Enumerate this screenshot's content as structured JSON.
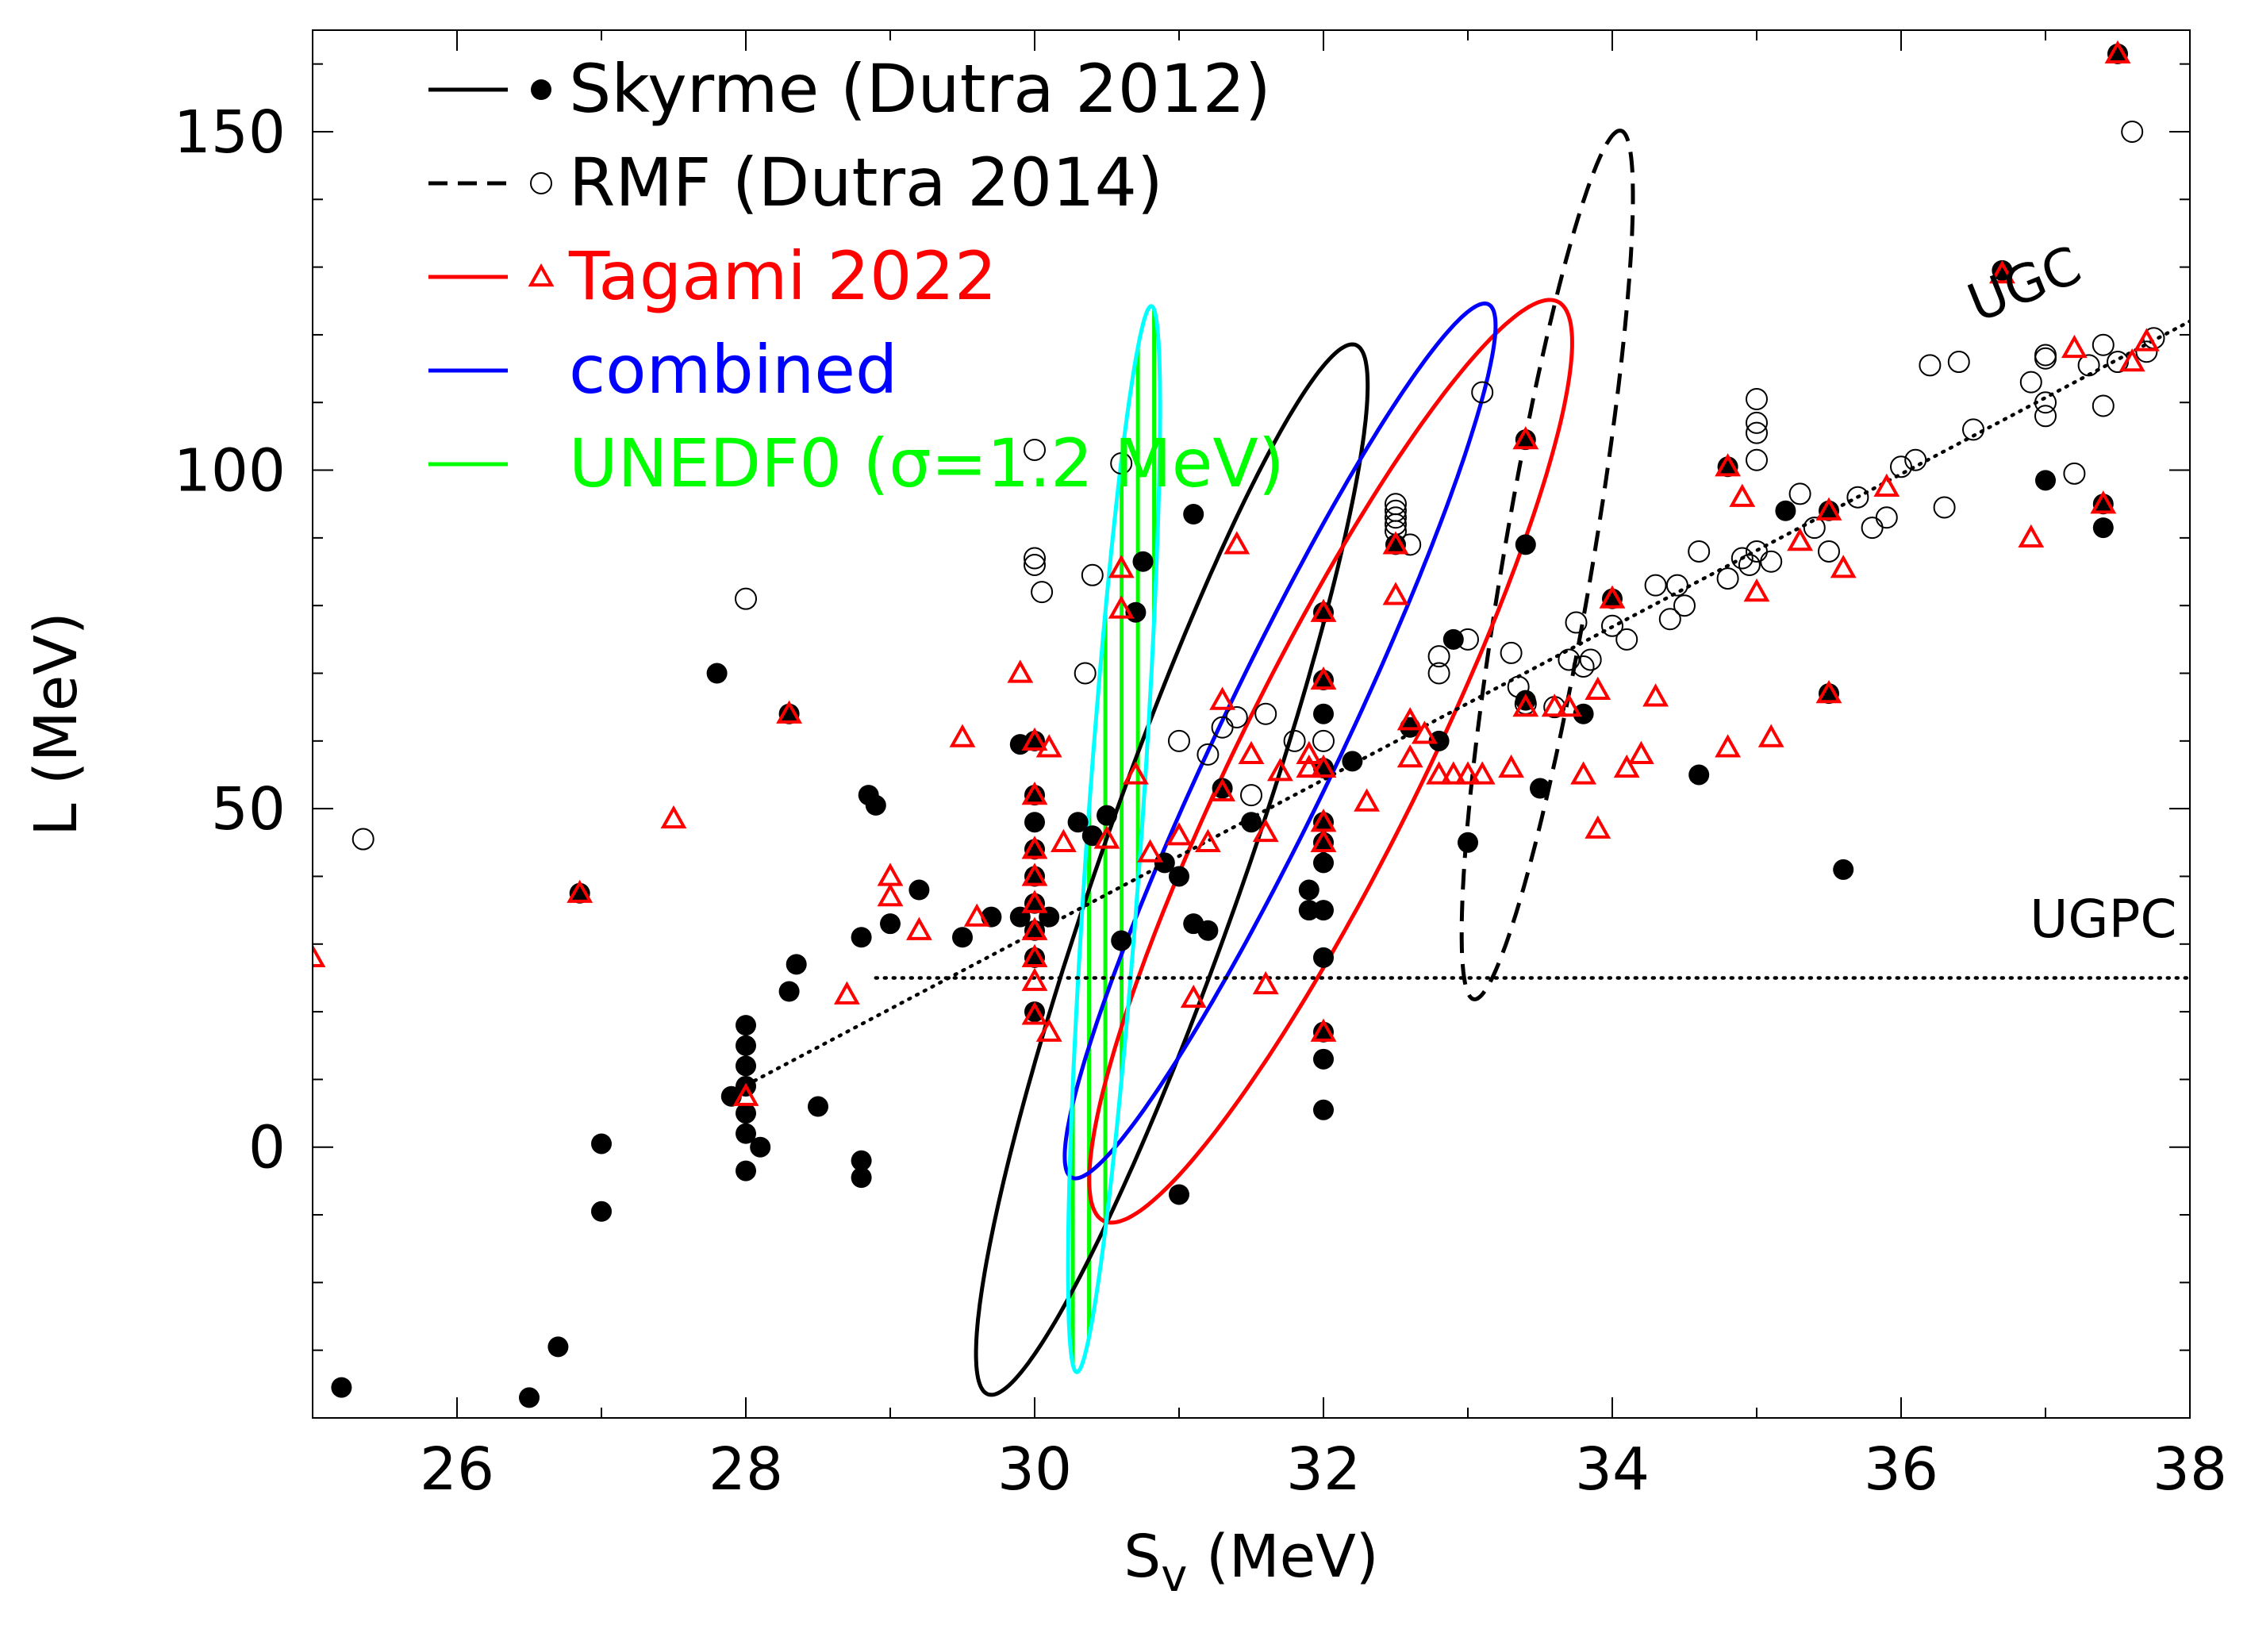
{
  "chart_data": {
    "type": "scatter",
    "title": "",
    "xlabel": "S",
    "xlabel_sub": "v",
    "xlabel_unit": " (MeV)",
    "ylabel": "L (MeV)",
    "xlim": [
      25,
      38
    ],
    "ylim": [
      -40,
      165
    ],
    "xticks": [
      26,
      28,
      30,
      32,
      34,
      36,
      38
    ],
    "yticks": [
      0,
      50,
      100,
      150
    ],
    "legend": {
      "position": "top-left",
      "entries": [
        {
          "label": "Skyrme (Dutra 2012)",
          "color": "#000000",
          "line": "solid",
          "marker": "filled-circle"
        },
        {
          "label": "RMF (Dutra 2014)",
          "color": "#000000",
          "line": "dashed",
          "marker": "open-circle"
        },
        {
          "label": "Tagami 2022",
          "color": "#ff0000",
          "line": "solid",
          "marker": "open-triangle"
        },
        {
          "label": "combined",
          "color": "#0000ff",
          "line": "solid",
          "marker": ""
        },
        {
          "label": "UNEDF0 (σ=1.2 MeV)",
          "color": "#00ff00",
          "line": "solid",
          "marker": ""
        }
      ]
    },
    "annotations": [
      {
        "text": "UGC",
        "x": 36.9,
        "y": 125,
        "rotation": -22
      },
      {
        "text": "UGPC",
        "x": 37.4,
        "y": 31
      }
    ],
    "reference_lines": [
      {
        "name": "UGC",
        "style": "dotted",
        "color": "#000000",
        "points": [
          [
            27.9,
            8
          ],
          [
            38,
            122
          ]
        ]
      },
      {
        "name": "UGPC",
        "style": "dotted",
        "color": "#000000",
        "points": [
          [
            28.9,
            25
          ],
          [
            38,
            25
          ]
        ]
      }
    ],
    "ellipses": [
      {
        "name": "Skyrme (Dutra 2012)",
        "color": "#000000",
        "dash": "solid",
        "cx": 30.95,
        "cy": 41,
        "rx": 3.85,
        "ry": 10.6,
        "angle_deg": 70.7
      },
      {
        "name": "RMF (Dutra 2014)",
        "color": "#000000",
        "dash": "dashed",
        "cx": 33.55,
        "cy": 86,
        "rx": 3.05,
        "ry": 6.6,
        "angle_deg": 80.4
      },
      {
        "name": "Tagami 2022",
        "color": "#ff0000",
        "dash": "solid",
        "cx": 32.05,
        "cy": 57,
        "rx": 3.55,
        "ry": 13.5,
        "angle_deg": 63.7
      },
      {
        "name": "combined",
        "color": "#0000ff",
        "dash": "solid",
        "cx": 31.7,
        "cy": 60,
        "rx": 3.35,
        "ry": 9.0,
        "angle_deg": 64.5
      },
      {
        "name": "UNEDF0 (σ=1.2 MeV)",
        "color": "#00ffff",
        "fill": "#00ff00",
        "dash": "solid",
        "cx": 30.55,
        "cy": 45.5,
        "rx": 3.7,
        "ry": 4.0,
        "angle_deg": 86
      }
    ],
    "series": [
      {
        "name": "Skyrme (Dutra 2012)",
        "marker": "filled-circle",
        "color": "#000000",
        "points": [
          [
            25.2,
            -35.5
          ],
          [
            26.5,
            -37
          ],
          [
            26.7,
            -29.5
          ],
          [
            26.85,
            37.5
          ],
          [
            27,
            0.5
          ],
          [
            27,
            -9.5
          ],
          [
            27.8,
            70
          ],
          [
            27.9,
            7.5
          ],
          [
            28,
            18
          ],
          [
            28,
            15
          ],
          [
            28,
            12
          ],
          [
            28,
            9
          ],
          [
            28,
            5
          ],
          [
            28,
            2
          ],
          [
            28,
            -3.5
          ],
          [
            28.1,
            0
          ],
          [
            28.3,
            64
          ],
          [
            28.3,
            23
          ],
          [
            28.35,
            27
          ],
          [
            28.5,
            6
          ],
          [
            28.8,
            -2
          ],
          [
            28.8,
            -4.5
          ],
          [
            28.85,
            52
          ],
          [
            28.9,
            50.5
          ],
          [
            28.8,
            31
          ],
          [
            29,
            33
          ],
          [
            29.2,
            38
          ],
          [
            29.5,
            31
          ],
          [
            29.7,
            34
          ],
          [
            29.9,
            34
          ],
          [
            29.9,
            59.5
          ],
          [
            30,
            60
          ],
          [
            30,
            52
          ],
          [
            30,
            48
          ],
          [
            30,
            44
          ],
          [
            30,
            40
          ],
          [
            30,
            36
          ],
          [
            30,
            32
          ],
          [
            30,
            28
          ],
          [
            30,
            20
          ],
          [
            30.1,
            34
          ],
          [
            30.3,
            48
          ],
          [
            30.4,
            46
          ],
          [
            30.5,
            49
          ],
          [
            30.6,
            30.5
          ],
          [
            30.7,
            79
          ],
          [
            30.75,
            86.5
          ],
          [
            30.9,
            42
          ],
          [
            31,
            40
          ],
          [
            31,
            -7
          ],
          [
            31.1,
            33
          ],
          [
            31.1,
            93.5
          ],
          [
            31.2,
            32
          ],
          [
            31.3,
            53
          ],
          [
            31.5,
            48
          ],
          [
            31.9,
            35
          ],
          [
            31.9,
            38
          ],
          [
            32,
            79
          ],
          [
            32,
            69
          ],
          [
            32,
            64
          ],
          [
            32,
            56
          ],
          [
            32,
            48
          ],
          [
            32,
            45
          ],
          [
            32,
            42
          ],
          [
            32,
            35
          ],
          [
            32,
            28
          ],
          [
            32,
            17
          ],
          [
            32,
            13
          ],
          [
            32,
            5.5
          ],
          [
            32.2,
            57
          ],
          [
            32.5,
            89
          ],
          [
            32.6,
            62
          ],
          [
            32.8,
            60
          ],
          [
            32.9,
            75
          ],
          [
            33,
            45
          ],
          [
            33.4,
            104.5
          ],
          [
            33.4,
            89
          ],
          [
            33.4,
            66
          ],
          [
            33.5,
            53
          ],
          [
            33.8,
            64
          ],
          [
            34,
            81
          ],
          [
            34.6,
            55
          ],
          [
            34.8,
            100.5
          ],
          [
            35.2,
            94
          ],
          [
            35.5,
            67
          ],
          [
            35.5,
            94
          ],
          [
            35.6,
            41
          ],
          [
            36.7,
            129.5
          ],
          [
            37,
            98.5
          ],
          [
            37.4,
            91.5
          ],
          [
            37.4,
            95
          ],
          [
            37.5,
            161.5
          ]
        ]
      },
      {
        "name": "RMF (Dutra 2014)",
        "marker": "open-circle",
        "color": "#000000",
        "points": [
          [
            25.35,
            45.5
          ],
          [
            28,
            81
          ],
          [
            30,
            103
          ],
          [
            30,
            87
          ],
          [
            30,
            86
          ],
          [
            30.05,
            82
          ],
          [
            30.4,
            84.5
          ],
          [
            30.35,
            70
          ],
          [
            30.6,
            101
          ],
          [
            31,
            60
          ],
          [
            31.2,
            58
          ],
          [
            31.3,
            62
          ],
          [
            31.4,
            63.5
          ],
          [
            31.5,
            52
          ],
          [
            31.6,
            64
          ],
          [
            31.8,
            60
          ],
          [
            32,
            60
          ],
          [
            32.5,
            95
          ],
          [
            32.5,
            94
          ],
          [
            32.5,
            93
          ],
          [
            32.5,
            92
          ],
          [
            32.5,
            91
          ],
          [
            32.6,
            89
          ],
          [
            32.8,
            72.5
          ],
          [
            32.8,
            70
          ],
          [
            33,
            75
          ],
          [
            33.1,
            111.5
          ],
          [
            33.3,
            73
          ],
          [
            33.35,
            68
          ],
          [
            33.4,
            65.5
          ],
          [
            33.6,
            65
          ],
          [
            33.7,
            72
          ],
          [
            33.75,
            77.5
          ],
          [
            33.8,
            71
          ],
          [
            33.85,
            72
          ],
          [
            34,
            77
          ],
          [
            34.1,
            75
          ],
          [
            34.3,
            83
          ],
          [
            34.4,
            78
          ],
          [
            34.45,
            83
          ],
          [
            34.5,
            80
          ],
          [
            34.6,
            88
          ],
          [
            34.8,
            84
          ],
          [
            34.9,
            87
          ],
          [
            34.95,
            86
          ],
          [
            35,
            88
          ],
          [
            35,
            110.5
          ],
          [
            35,
            107
          ],
          [
            35,
            105.5
          ],
          [
            35,
            101.5
          ],
          [
            35.1,
            86.5
          ],
          [
            35.3,
            96.5
          ],
          [
            35.4,
            91.5
          ],
          [
            35.5,
            88
          ],
          [
            35.7,
            96
          ],
          [
            35.8,
            91.5
          ],
          [
            35.9,
            93
          ],
          [
            36,
            100.5
          ],
          [
            36.1,
            101.5
          ],
          [
            36.2,
            115.5
          ],
          [
            36.3,
            94.5
          ],
          [
            36.4,
            116
          ],
          [
            36.5,
            106
          ],
          [
            36.9,
            113
          ],
          [
            37,
            110
          ],
          [
            37,
            108
          ],
          [
            37,
            116.5
          ],
          [
            37,
            117
          ],
          [
            37.2,
            99.5
          ],
          [
            37.3,
            115.5
          ],
          [
            37.4,
            109.5
          ],
          [
            37.4,
            118.5
          ],
          [
            37.5,
            116
          ],
          [
            37.6,
            150
          ],
          [
            37.7,
            117.5
          ],
          [
            37.75,
            119.5
          ]
        ]
      },
      {
        "name": "Tagami 2022",
        "marker": "open-triangle",
        "color": "#ff0000",
        "points": [
          [
            25,
            28
          ],
          [
            26.85,
            37.5
          ],
          [
            27.5,
            48.5
          ],
          [
            28,
            7.5
          ],
          [
            28.3,
            64
          ],
          [
            28.7,
            22.5
          ],
          [
            29,
            40
          ],
          [
            29,
            37
          ],
          [
            29.2,
            32
          ],
          [
            29.5,
            60.5
          ],
          [
            29.6,
            34
          ],
          [
            29.9,
            70
          ],
          [
            30,
            60
          ],
          [
            30,
            52
          ],
          [
            30,
            44
          ],
          [
            30,
            40
          ],
          [
            30,
            36
          ],
          [
            30,
            32
          ],
          [
            30,
            28
          ],
          [
            30,
            24.5
          ],
          [
            30,
            19.5
          ],
          [
            30.1,
            59
          ],
          [
            30.1,
            17
          ],
          [
            30.2,
            45
          ],
          [
            30.5,
            45.5
          ],
          [
            30.6,
            79.5
          ],
          [
            30.6,
            85.5
          ],
          [
            30.7,
            55
          ],
          [
            30.8,
            43.5
          ],
          [
            31,
            46
          ],
          [
            31.1,
            22
          ],
          [
            31.2,
            45
          ],
          [
            31.3,
            66
          ],
          [
            31.3,
            52.5
          ],
          [
            31.4,
            89
          ],
          [
            31.5,
            58
          ],
          [
            31.6,
            24
          ],
          [
            31.6,
            46.5
          ],
          [
            31.7,
            55.5
          ],
          [
            31.9,
            58
          ],
          [
            31.9,
            56
          ],
          [
            32,
            79
          ],
          [
            32,
            69
          ],
          [
            32,
            56
          ],
          [
            32,
            48
          ],
          [
            32,
            45
          ],
          [
            32,
            17
          ],
          [
            32.3,
            51
          ],
          [
            32.5,
            81.5
          ],
          [
            32.5,
            89
          ],
          [
            32.6,
            57.5
          ],
          [
            32.6,
            63
          ],
          [
            32.7,
            61
          ],
          [
            32.8,
            55
          ],
          [
            32.9,
            55
          ],
          [
            33,
            55
          ],
          [
            33.1,
            55
          ],
          [
            33.3,
            56
          ],
          [
            33.4,
            104.5
          ],
          [
            33.4,
            65
          ],
          [
            33.6,
            65
          ],
          [
            33.7,
            65
          ],
          [
            33.8,
            55
          ],
          [
            33.9,
            47
          ],
          [
            33.9,
            67.5
          ],
          [
            34,
            81
          ],
          [
            34.1,
            56
          ],
          [
            34.2,
            58
          ],
          [
            34.3,
            66.5
          ],
          [
            34.8,
            59
          ],
          [
            34.8,
            100.5
          ],
          [
            34.9,
            96
          ],
          [
            35,
            82
          ],
          [
            35.1,
            60.5
          ],
          [
            35.3,
            89.5
          ],
          [
            35.5,
            94
          ],
          [
            35.5,
            67
          ],
          [
            35.6,
            85.5
          ],
          [
            35.9,
            97.5
          ],
          [
            36.7,
            129
          ],
          [
            36.9,
            90
          ],
          [
            37.2,
            118
          ],
          [
            37.4,
            95
          ],
          [
            37.5,
            161.5
          ],
          [
            37.6,
            116
          ],
          [
            37.7,
            119
          ]
        ]
      }
    ]
  }
}
